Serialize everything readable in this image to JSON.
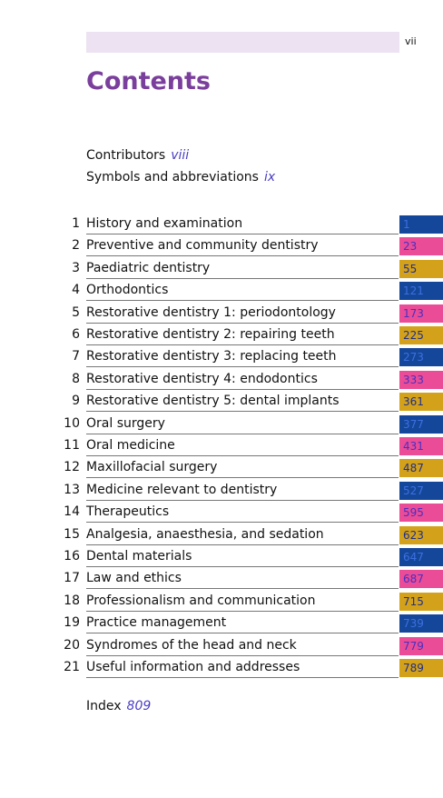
{
  "header": {
    "page": "vii"
  },
  "title": "Contents",
  "front_matter": [
    {
      "label": "Contributors",
      "page": "viii"
    },
    {
      "label": "Symbols and abbreviations",
      "page": "ix"
    }
  ],
  "chapters": [
    {
      "number": 1,
      "title": "History and examination",
      "page": 1
    },
    {
      "number": 2,
      "title": "Preventive and community dentistry",
      "page": 23
    },
    {
      "number": 3,
      "title": "Paediatric dentistry",
      "page": 55
    },
    {
      "number": 4,
      "title": "Orthodontics",
      "page": 121
    },
    {
      "number": 5,
      "title": "Restorative dentistry 1: periodontology",
      "page": 173
    },
    {
      "number": 6,
      "title": "Restorative dentistry 2: repairing teeth",
      "page": 225
    },
    {
      "number": 7,
      "title": "Restorative dentistry 3: replacing teeth",
      "page": 273
    },
    {
      "number": 8,
      "title": "Restorative dentistry 4: endodontics",
      "page": 333
    },
    {
      "number": 9,
      "title": "Restorative dentistry 5: dental implants",
      "page": 361
    },
    {
      "number": 10,
      "title": "Oral surgery",
      "page": 377
    },
    {
      "number": 11,
      "title": "Oral medicine",
      "page": 431
    },
    {
      "number": 12,
      "title": "Maxillofacial surgery",
      "page": 487
    },
    {
      "number": 13,
      "title": "Medicine relevant to dentistry",
      "page": 527
    },
    {
      "number": 14,
      "title": "Therapeutics",
      "page": 595
    },
    {
      "number": 15,
      "title": "Analgesia, anaesthesia, and sedation",
      "page": 623
    },
    {
      "number": 16,
      "title": "Dental materials",
      "page": 647
    },
    {
      "number": 17,
      "title": "Law and ethics",
      "page": 687
    },
    {
      "number": 18,
      "title": "Professionalism and communication",
      "page": 715
    },
    {
      "number": 19,
      "title": "Practice management",
      "page": 739
    },
    {
      "number": 20,
      "title": "Syndromes of the head and neck",
      "page": 779
    },
    {
      "number": 21,
      "title": "Useful information and addresses",
      "page": 789
    }
  ],
  "index": {
    "label": "Index",
    "page": 809
  }
}
